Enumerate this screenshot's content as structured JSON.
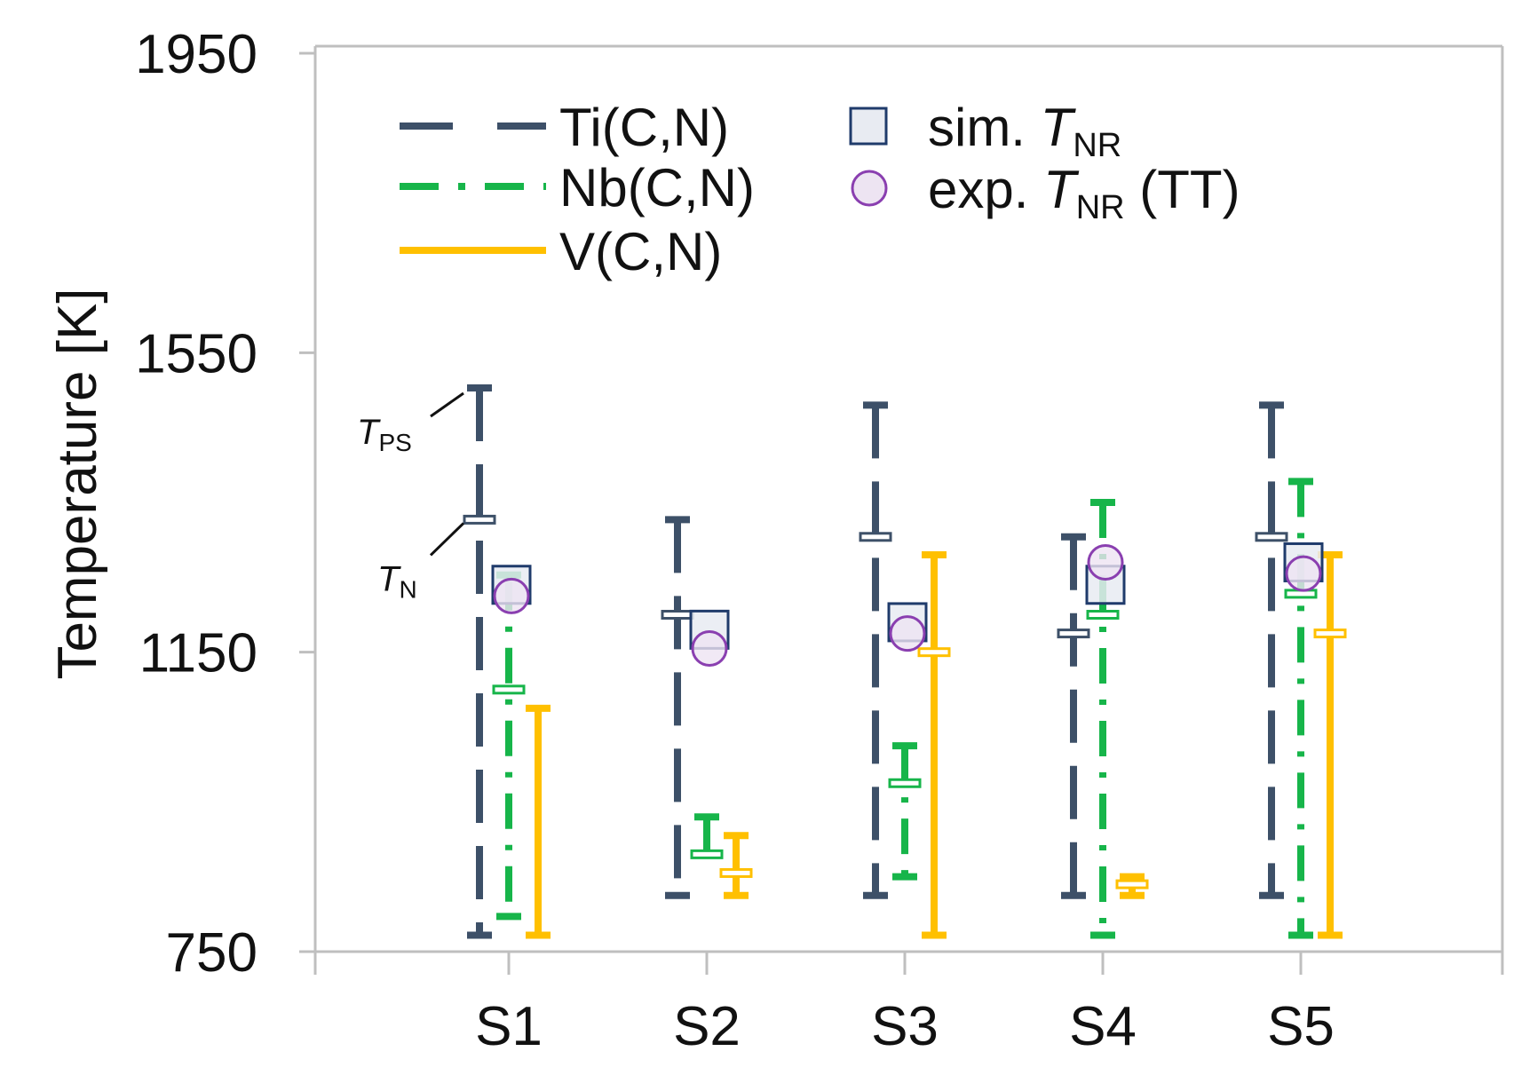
{
  "chart_data": {
    "type": "range",
    "xlabel": "",
    "ylabel": "Temperature [K]",
    "ylim": [
      750,
      1950
    ],
    "yticks": [
      750,
      1150,
      1550,
      1950
    ],
    "categories": [
      "S1",
      "S2",
      "S3",
      "S4",
      "S5"
    ],
    "series": [
      {
        "name": "Ti(C,N)",
        "style": "dashed",
        "color": "#3d5068",
        "points": [
          {
            "category": "S1",
            "low": 772,
            "high": 1503,
            "T_N": 1327
          },
          {
            "category": "S2",
            "low": 825,
            "high": 1327,
            "T_N": 1200
          },
          {
            "category": "S3",
            "low": 825,
            "high": 1480,
            "T_N": 1304
          },
          {
            "category": "S4",
            "low": 825,
            "high": 1304,
            "T_N": 1175
          },
          {
            "category": "S5",
            "low": 825,
            "high": 1480,
            "T_N": 1304
          }
        ]
      },
      {
        "name": "Nb(C,N)",
        "style": "dash-dot",
        "color": "#17b54a",
        "points": [
          {
            "category": "S1",
            "low": 797,
            "high": 1253,
            "T_N": 1100
          },
          {
            "category": "S2",
            "low": 880,
            "high": 930,
            "T_N": 880
          },
          {
            "category": "S3",
            "low": 850,
            "high": 1025,
            "T_N": 975
          },
          {
            "category": "S4",
            "low": 772,
            "high": 1350,
            "T_N": 1200
          },
          {
            "category": "S5",
            "low": 772,
            "high": 1378,
            "T_N": 1228
          }
        ]
      },
      {
        "name": "V(C,N)",
        "style": "solid",
        "color": "#ffc000",
        "points": [
          {
            "category": "S1",
            "low": 772,
            "high": 1075,
            "T_N": null
          },
          {
            "category": "S2",
            "low": 825,
            "high": 905,
            "T_N": 855
          },
          {
            "category": "S3",
            "low": 772,
            "high": 1280,
            "T_N": 1150
          },
          {
            "category": "S4",
            "low": 825,
            "high": 850,
            "T_N": 840
          },
          {
            "category": "S5",
            "low": 772,
            "high": 1280,
            "T_N": 1175
          }
        ]
      }
    ],
    "markers": [
      {
        "name": "sim. T_NR",
        "label": "sim.",
        "symbol": "T",
        "subscript": "NR",
        "shape": "square",
        "color": "#1f3b6b",
        "fill": "#e8ebf2",
        "values": [
          1240,
          1180,
          1190,
          1240,
          1270
        ]
      },
      {
        "name": "exp. T_NR (TT)",
        "label": "exp.",
        "symbol": "T",
        "subscript": "NR",
        "suffix": "(TT)",
        "shape": "circle",
        "color": "#8a3fb0",
        "fill": "#ede4f2",
        "values": [
          1225,
          1155,
          1175,
          1270,
          1255
        ]
      }
    ],
    "annotations": [
      {
        "symbol": "T",
        "subscript": "PS"
      },
      {
        "symbol": "T",
        "subscript": "N"
      }
    ],
    "legend_position": "top-left"
  }
}
